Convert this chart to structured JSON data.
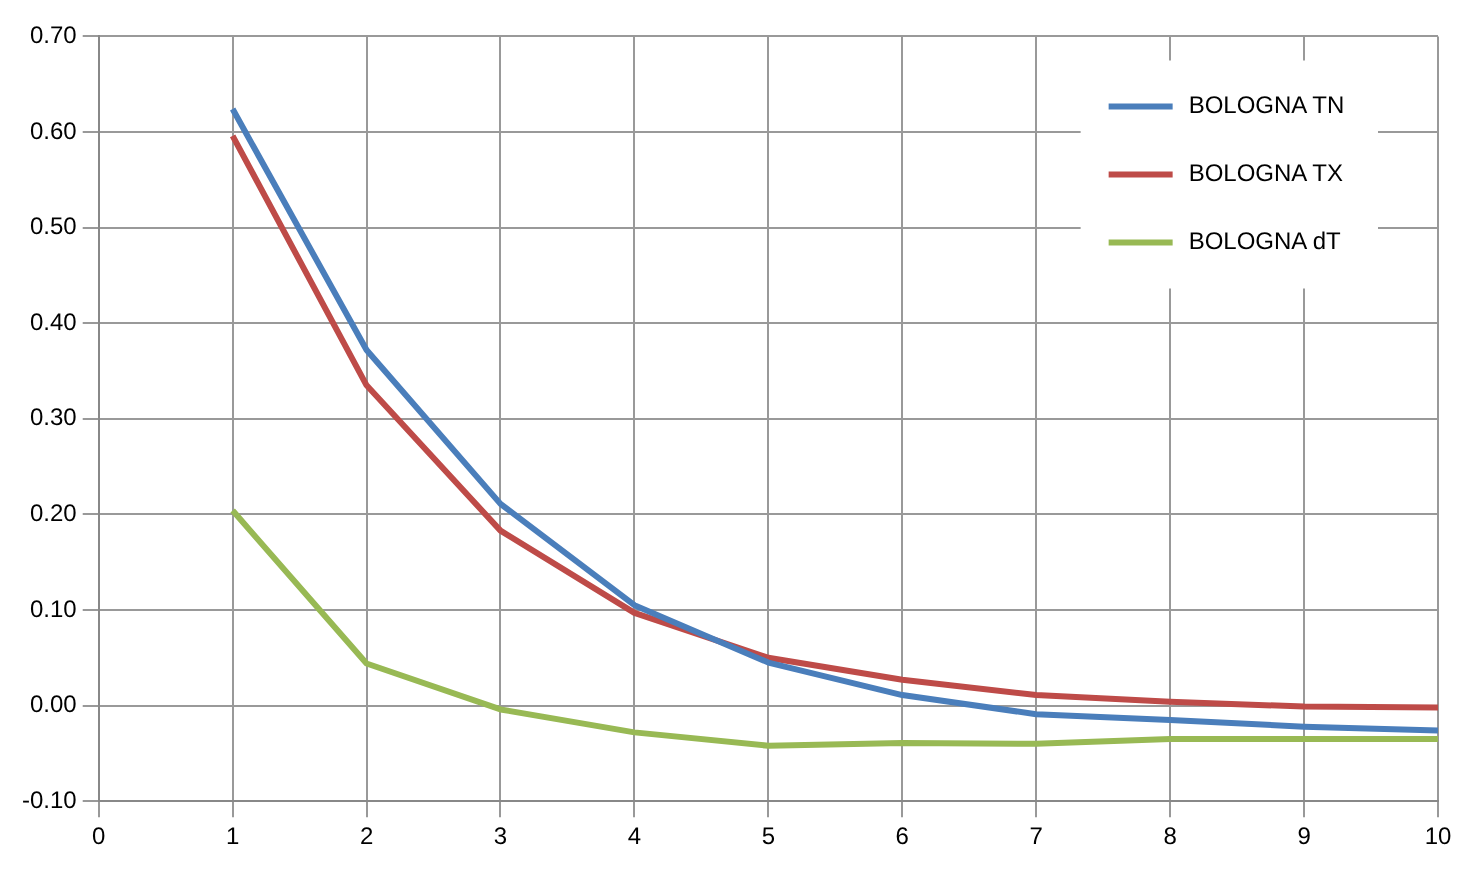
{
  "chart_data": {
    "type": "line",
    "x": [
      1,
      2,
      3,
      4,
      5,
      6,
      7,
      8,
      9,
      10
    ],
    "xlim": [
      0,
      10
    ],
    "xticks": [
      0,
      1,
      2,
      3,
      4,
      5,
      6,
      7,
      8,
      9,
      10
    ],
    "ylim": [
      -0.1,
      0.7
    ],
    "yticks": [
      {
        "value": -0.1,
        "label": "-0.10"
      },
      {
        "value": 0,
        "label": "0.00"
      },
      {
        "value": 0.1,
        "label": "0.10"
      },
      {
        "value": 0.2,
        "label": "0.20"
      },
      {
        "value": 0.3,
        "label": "0.30"
      },
      {
        "value": 0.4,
        "label": "0.40"
      },
      {
        "value": 0.5,
        "label": "0.50"
      },
      {
        "value": 0.6,
        "label": "0.60"
      },
      {
        "value": 0.7,
        "label": "0.70"
      }
    ],
    "grid": true,
    "legend": "top right",
    "marker": "none",
    "line_style": "solid",
    "series": [
      {
        "name": "BOLOGNA TN",
        "color": "#4a7ebb",
        "values": [
          0.624,
          0.372,
          0.211,
          0.105,
          0.045,
          0.011,
          -0.009,
          -0.015,
          -0.022,
          -0.026
        ]
      },
      {
        "name": "BOLOGNA TX",
        "color": "#be4b48",
        "values": [
          0.596,
          0.335,
          0.183,
          0.097,
          0.05,
          0.027,
          0.011,
          0.004,
          -0.001,
          -0.002
        ]
      },
      {
        "name": "BOLOGNA dT",
        "color": "#98b954",
        "values": [
          0.204,
          0.044,
          -0.004,
          -0.028,
          -0.042,
          -0.039,
          -0.04,
          -0.035,
          -0.035,
          -0.035
        ]
      }
    ]
  }
}
